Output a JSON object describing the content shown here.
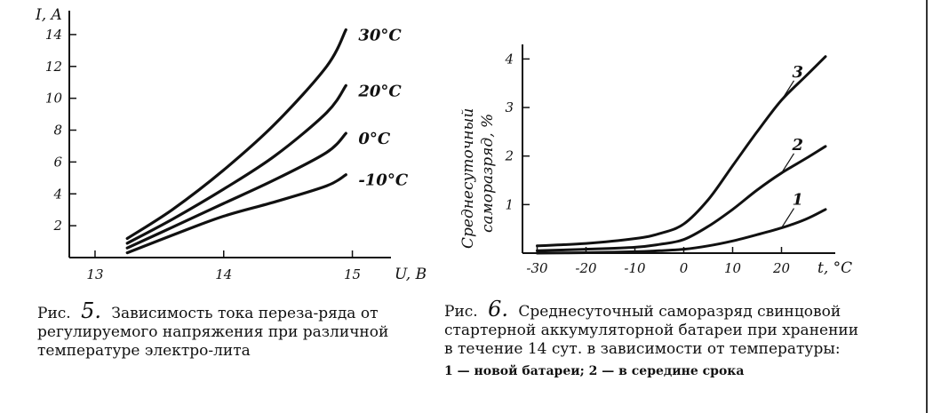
{
  "chart_data": [
    {
      "type": "line",
      "y_axis_label": "I, A",
      "x_axis_label": "U, B",
      "x_ticks": [
        "13",
        "14",
        "15"
      ],
      "y_ticks": [
        "2",
        "4",
        "6",
        "8",
        "10",
        "12",
        "14"
      ],
      "xlim": [
        12.8,
        15.3
      ],
      "ylim": [
        0,
        15.5
      ],
      "series": [
        {
          "name": "30°C",
          "x": [
            13.25,
            13.6,
            14.0,
            14.4,
            14.8,
            14.95
          ],
          "y": [
            1.2,
            3.0,
            5.5,
            8.4,
            12.0,
            14.3
          ]
        },
        {
          "name": "20°C",
          "x": [
            13.25,
            13.6,
            14.0,
            14.4,
            14.8,
            14.95
          ],
          "y": [
            0.9,
            2.4,
            4.3,
            6.4,
            9.1,
            10.8
          ]
        },
        {
          "name": "0°C",
          "x": [
            13.25,
            13.6,
            14.0,
            14.4,
            14.8,
            14.95
          ],
          "y": [
            0.6,
            1.9,
            3.4,
            4.9,
            6.6,
            7.8
          ]
        },
        {
          "name": "-10°C",
          "x": [
            13.25,
            13.6,
            14.0,
            14.4,
            14.8,
            14.95
          ],
          "y": [
            0.3,
            1.4,
            2.6,
            3.5,
            4.5,
            5.2
          ]
        }
      ],
      "caption_prefix": "Рис.",
      "caption_number": "5.",
      "caption_text": "Зависимость тока переза-ряда от регулируемого напряжения при различной температуре электро-лита"
    },
    {
      "type": "line",
      "y_axis_label_1": "Среднесуточный",
      "y_axis_label_2": "саморазряд, %",
      "x_axis_label": "t, °C",
      "x_ticks": [
        "-30",
        "-20",
        "-10",
        "0",
        "10",
        "20"
      ],
      "y_ticks": [
        "1",
        "2",
        "3",
        "4"
      ],
      "xlim": [
        -33,
        31
      ],
      "ylim": [
        0,
        4.3
      ],
      "series": [
        {
          "name": "3",
          "x": [
            -30,
            -20,
            -10,
            -5,
            0,
            5,
            10,
            15,
            20,
            25,
            29
          ],
          "y": [
            0.15,
            0.2,
            0.3,
            0.4,
            0.6,
            1.1,
            1.8,
            2.5,
            3.15,
            3.65,
            4.05
          ]
        },
        {
          "name": "2",
          "x": [
            -30,
            -20,
            -10,
            -5,
            0,
            5,
            10,
            15,
            20,
            25,
            29
          ],
          "y": [
            0.05,
            0.08,
            0.12,
            0.18,
            0.28,
            0.55,
            0.9,
            1.3,
            1.65,
            1.95,
            2.2
          ]
        },
        {
          "name": "1",
          "x": [
            -30,
            -20,
            -10,
            -5,
            0,
            5,
            10,
            15,
            20,
            25,
            29
          ],
          "y": [
            0.0,
            0.01,
            0.03,
            0.05,
            0.08,
            0.15,
            0.25,
            0.38,
            0.52,
            0.7,
            0.9
          ]
        }
      ],
      "caption_prefix": "Рис.",
      "caption_number": "6.",
      "caption_text": "Среднесуточный саморазряд свинцовой стартерной аккумуляторной батареи при хранении в течение 14 сут. в зависимости от температуры:",
      "legend_text": "1 — новой батареи; 2 — в середине срока"
    }
  ]
}
